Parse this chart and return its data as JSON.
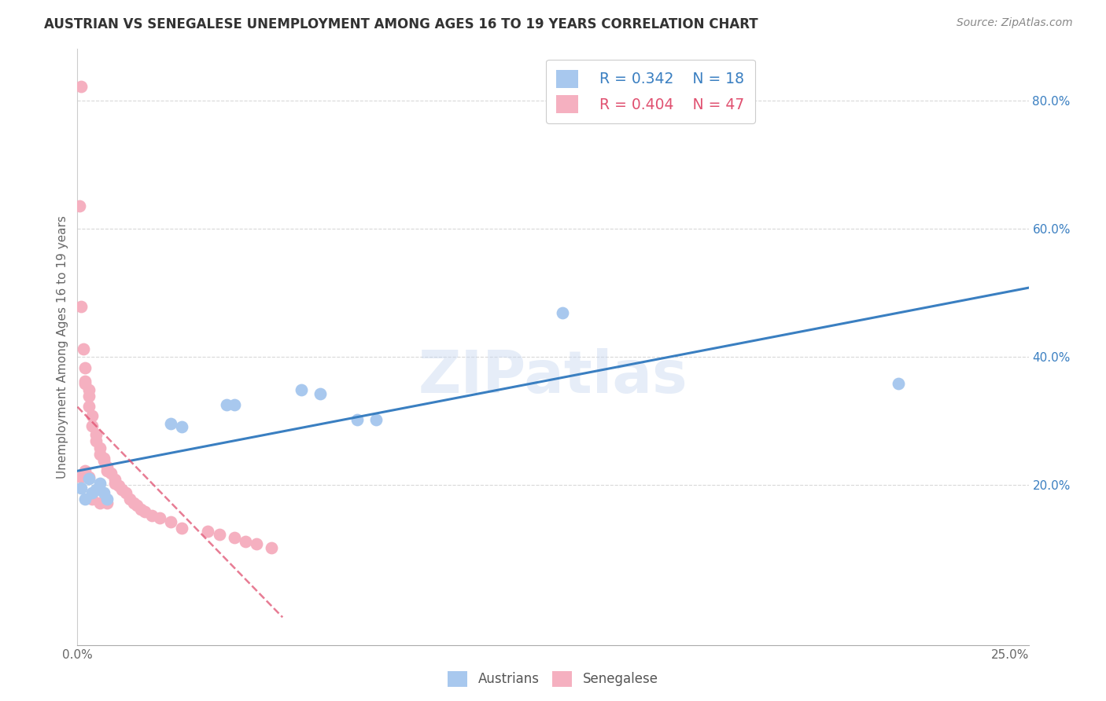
{
  "title": "AUSTRIAN VS SENEGALESE UNEMPLOYMENT AMONG AGES 16 TO 19 YEARS CORRELATION CHART",
  "source": "Source: ZipAtlas.com",
  "ylabel": "Unemployment Among Ages 16 to 19 years",
  "watermark": "ZIPatlas",
  "austrian_color": "#a8c8ee",
  "senegalese_color": "#f5b0c0",
  "austrian_line_color": "#3a7fc1",
  "senegalese_line_color": "#e05070",
  "grid_color": "#d8d8d8",
  "background_color": "#ffffff",
  "legend_r_austrians": "R = 0.342",
  "legend_n_austrians": "N = 18",
  "legend_r_senegalese": "R = 0.404",
  "legend_n_senegalese": "N = 47",
  "austrian_x": [
    0.001,
    0.002,
    0.003,
    0.004,
    0.005,
    0.006,
    0.007,
    0.008,
    0.025,
    0.028,
    0.04,
    0.042,
    0.06,
    0.065,
    0.075,
    0.08,
    0.13,
    0.22
  ],
  "austrian_y": [
    0.195,
    0.178,
    0.21,
    0.188,
    0.192,
    0.202,
    0.188,
    0.178,
    0.295,
    0.29,
    0.325,
    0.325,
    0.348,
    0.342,
    0.302,
    0.302,
    0.468,
    0.358
  ],
  "senegalese_x": [
    0.0005,
    0.001,
    0.0015,
    0.002,
    0.002,
    0.002,
    0.003,
    0.003,
    0.003,
    0.004,
    0.004,
    0.005,
    0.005,
    0.006,
    0.006,
    0.007,
    0.007,
    0.008,
    0.008,
    0.009,
    0.01,
    0.01,
    0.011,
    0.012,
    0.013,
    0.014,
    0.015,
    0.016,
    0.017,
    0.018,
    0.02,
    0.022,
    0.025,
    0.028,
    0.035,
    0.038,
    0.042,
    0.045,
    0.048,
    0.052,
    0.001,
    0.001,
    0.002,
    0.003,
    0.004,
    0.006,
    0.008
  ],
  "senegalese_y": [
    0.635,
    0.478,
    0.412,
    0.382,
    0.362,
    0.358,
    0.348,
    0.338,
    0.322,
    0.308,
    0.292,
    0.278,
    0.268,
    0.258,
    0.248,
    0.242,
    0.238,
    0.228,
    0.222,
    0.218,
    0.208,
    0.202,
    0.198,
    0.192,
    0.188,
    0.178,
    0.172,
    0.168,
    0.162,
    0.158,
    0.152,
    0.148,
    0.142,
    0.132,
    0.128,
    0.122,
    0.118,
    0.112,
    0.108,
    0.102,
    0.822,
    0.212,
    0.222,
    0.212,
    0.178,
    0.172,
    0.172
  ],
  "xlim": [
    0.0,
    0.255
  ],
  "ylim": [
    -0.05,
    0.88
  ],
  "xticks": [
    0.0,
    0.05,
    0.1,
    0.15,
    0.2,
    0.25
  ],
  "xticklabels": [
    "0.0%",
    "",
    "",
    "",
    "",
    "25.0%"
  ],
  "yticks": [
    0.2,
    0.4,
    0.6,
    0.8
  ],
  "yticklabels": [
    "20.0%",
    "40.0%",
    "60.0%",
    "80.0%"
  ]
}
